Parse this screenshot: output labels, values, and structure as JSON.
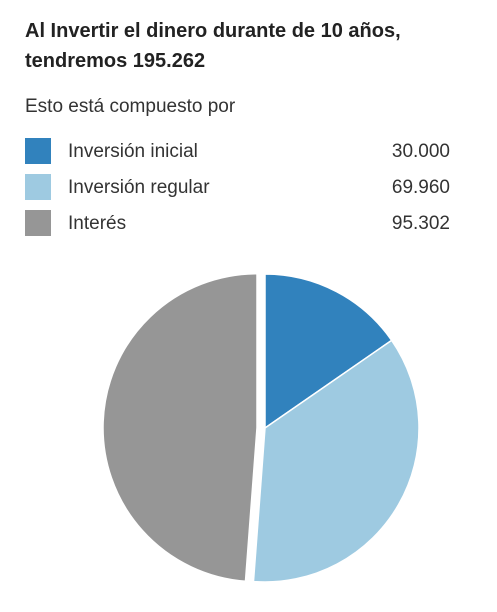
{
  "header": {
    "title": "Al Invertir el dinero durante de 10 años, tendremos 195.262",
    "subtitle": "Esto está compuesto por"
  },
  "legend": {
    "items": [
      {
        "label": "Inversión inicial",
        "value": "30.000",
        "color": "#3182bd"
      },
      {
        "label": "Inversión regular",
        "value": "69.960",
        "color": "#9ecae1"
      },
      {
        "label": "Interés",
        "value": "95.302",
        "color": "#969696"
      }
    ]
  },
  "chart_data": {
    "type": "pie",
    "categories": [
      "Inversión inicial",
      "Inversión regular",
      "Interés"
    ],
    "values": [
      30000,
      69960,
      95302
    ],
    "colors": [
      "#3182bd",
      "#9ecae1",
      "#969696"
    ],
    "total": 195262,
    "exploded_slice": "Interés"
  }
}
